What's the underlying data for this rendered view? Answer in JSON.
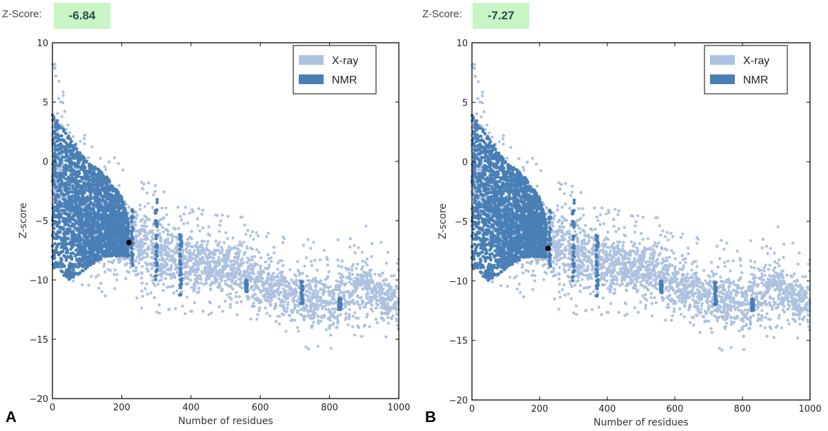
{
  "panels": [
    {
      "letter": "A",
      "zscore_label": "Z-Score:",
      "zscore_value": "-6.84"
    },
    {
      "letter": "B",
      "zscore_label": "Z-Score:",
      "zscore_value": "-7.27"
    }
  ],
  "colors": {
    "xray": "#adc2e0",
    "nmr": "#4a7fb5",
    "highlight": "#000000",
    "zbox": "#c8f5c4"
  },
  "chart_data": [
    {
      "type": "scatter",
      "title": "",
      "xlabel": "Number of residues",
      "ylabel": "Z-score",
      "xlim": [
        0,
        1000
      ],
      "ylim": [
        -20,
        10
      ],
      "xticks": [
        "0",
        "200",
        "400",
        "600",
        "800",
        "1000"
      ],
      "yticks": [
        "10",
        "5",
        "0",
        "-5",
        "-10",
        "-15",
        "-20"
      ],
      "legend": {
        "placement": "top-right",
        "entries": [
          "X-ray",
          "NMR"
        ]
      },
      "grid": false,
      "series": [
        {
          "name": "X-ray",
          "envelope_x_ymin_ymax": [
            [
              0,
              -8,
              9
            ],
            [
              50,
              -10,
              4
            ],
            [
              100,
              -11,
              2
            ],
            [
              200,
              -12,
              0
            ],
            [
              300,
              -13,
              -1
            ],
            [
              400,
              -13,
              -3
            ],
            [
              500,
              -13,
              -4
            ],
            [
              600,
              -14,
              -5
            ],
            [
              700,
              -16,
              -6
            ],
            [
              800,
              -16,
              -7
            ],
            [
              900,
              -15,
              -5
            ],
            [
              1000,
              -15,
              -8
            ]
          ]
        },
        {
          "name": "NMR",
          "envelope_x_ymin_ymax": [
            [
              0,
              -9,
              4
            ],
            [
              50,
              -10,
              2
            ],
            [
              100,
              -9,
              0
            ],
            [
              150,
              -8,
              -1
            ],
            [
              200,
              -8,
              -3
            ],
            [
              220,
              -8,
              -5
            ]
          ],
          "streaks_x_ymin_ymax": [
            [
              230,
              -9,
              -4
            ],
            [
              300,
              -10,
              -3
            ],
            [
              370,
              -12,
              -6
            ],
            [
              560,
              -11,
              -10
            ],
            [
              720,
              -12,
              -10
            ],
            [
              830,
              -12.5,
              -11.5
            ]
          ]
        }
      ],
      "highlight_point": {
        "x": 221,
        "y": -6.84
      }
    },
    {
      "type": "scatter",
      "title": "",
      "xlabel": "Number of residues",
      "ylabel": "Z-score",
      "xlim": [
        0,
        1000
      ],
      "ylim": [
        -20,
        10
      ],
      "xticks": [
        "0",
        "200",
        "400",
        "600",
        "800",
        "1000"
      ],
      "yticks": [
        "10",
        "5",
        "0",
        "-5",
        "-10",
        "-15",
        "-20"
      ],
      "legend": {
        "placement": "top-right",
        "entries": [
          "X-ray",
          "NMR"
        ]
      },
      "grid": false,
      "series": [
        {
          "name": "X-ray",
          "envelope_x_ymin_ymax": [
            [
              0,
              -8,
              9
            ],
            [
              50,
              -10,
              4
            ],
            [
              100,
              -11,
              2
            ],
            [
              200,
              -12,
              0
            ],
            [
              300,
              -13,
              -1
            ],
            [
              400,
              -13,
              -3
            ],
            [
              500,
              -13,
              -4
            ],
            [
              600,
              -14,
              -5
            ],
            [
              700,
              -16,
              -6
            ],
            [
              800,
              -16,
              -7
            ],
            [
              900,
              -15,
              -5
            ],
            [
              1000,
              -15,
              -8
            ]
          ]
        },
        {
          "name": "NMR",
          "envelope_x_ymin_ymax": [
            [
              0,
              -9,
              4
            ],
            [
              50,
              -10,
              2
            ],
            [
              100,
              -9,
              0
            ],
            [
              150,
              -8,
              -1
            ],
            [
              200,
              -8,
              -3
            ],
            [
              220,
              -8,
              -5
            ]
          ],
          "streaks_x_ymin_ymax": [
            [
              230,
              -9,
              -4
            ],
            [
              300,
              -10,
              -3
            ],
            [
              370,
              -12,
              -6
            ],
            [
              560,
              -11,
              -10
            ],
            [
              720,
              -12,
              -10
            ],
            [
              830,
              -12.5,
              -11.5
            ]
          ]
        }
      ],
      "highlight_point": {
        "x": 225,
        "y": -7.27
      }
    }
  ]
}
